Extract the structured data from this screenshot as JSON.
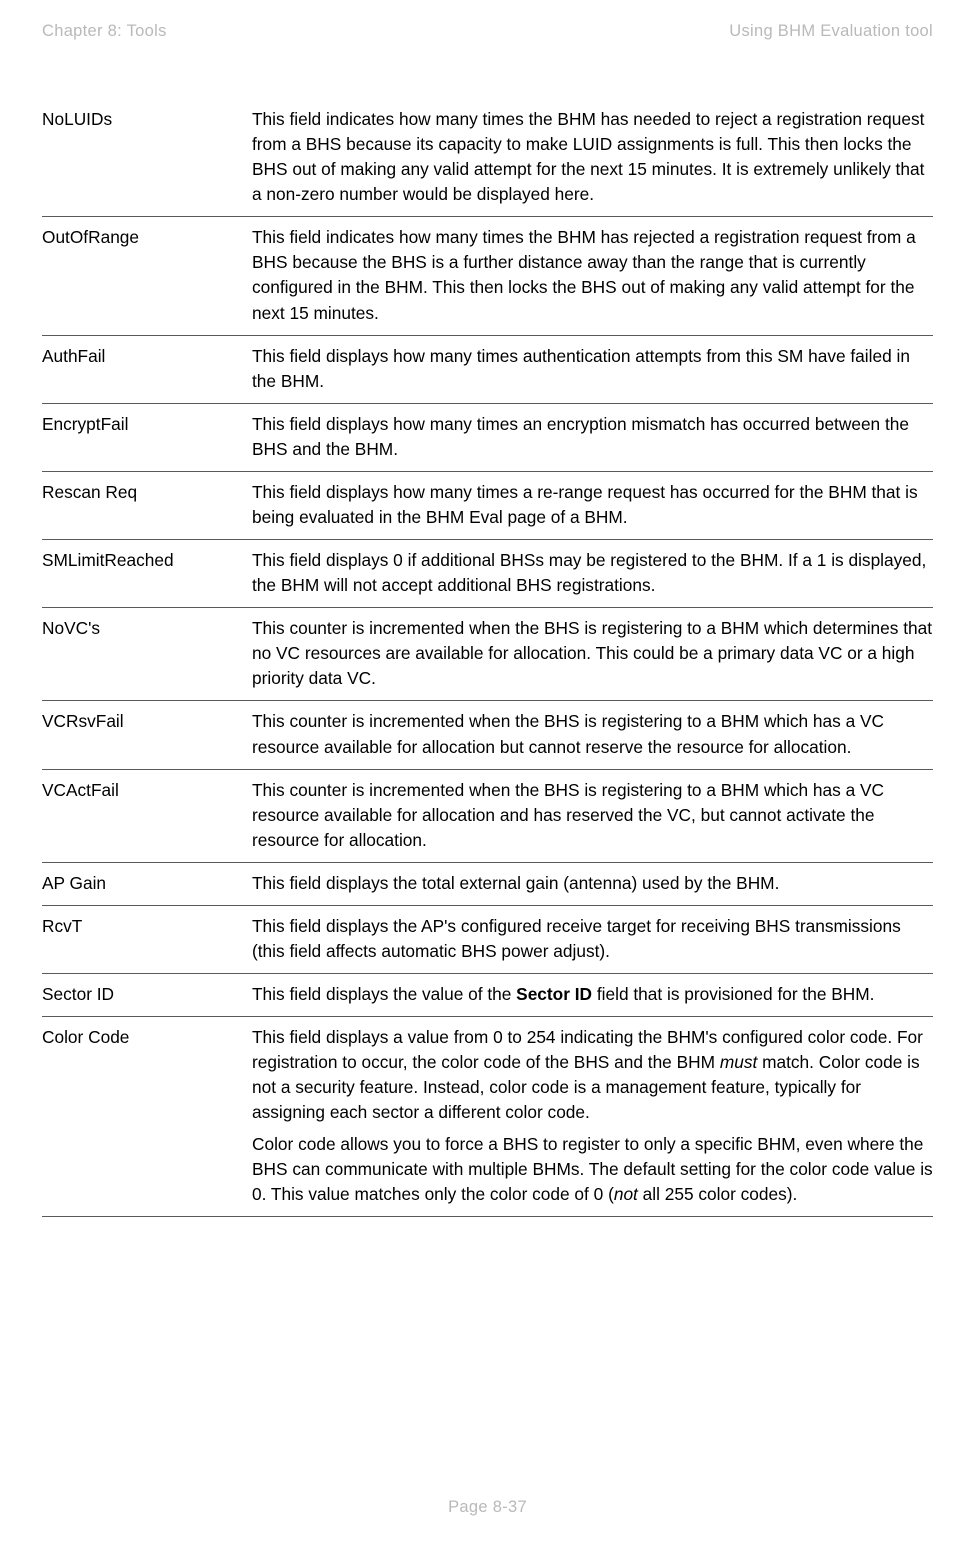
{
  "header": {
    "chapter_label": "Chapter 8:  Tools",
    "section_label": "Using BHM Evaluation tool"
  },
  "footer": {
    "page_label": "Page 8-37"
  },
  "table": {
    "rows": [
      {
        "term": "NoLUIDs",
        "desc_parts": [
          {
            "t": "This field indicates how many times the BHM has needed to reject a registration request from a BHS because its capacity to make LUID assignments is full. This then locks the BHS out of making any valid attempt for the next 15 minutes. It is extremely unlikely that a non-zero number would be displayed here."
          }
        ]
      },
      {
        "term": "OutOfRange",
        "desc_parts": [
          {
            "t": "This field indicates how many times the BHM has rejected a registration request from a BHS because the BHS is a further distance away than the range that is currently configured in the BHM. This then locks the BHS out of making any valid attempt for the next 15 minutes."
          }
        ]
      },
      {
        "term": "AuthFail",
        "desc_parts": [
          {
            "t": "This field displays how many times authentication attempts from this SM have failed in the BHM."
          }
        ]
      },
      {
        "term": "EncryptFail",
        "desc_parts": [
          {
            "t": "This field displays how many times an encryption mismatch has occurred between the BHS and the BHM."
          }
        ]
      },
      {
        "term": "Rescan Req",
        "desc_parts": [
          {
            "t": "This field displays how many times a re-range request has occurred for the BHM that is being evaluated in the BHM Eval page of a BHM."
          }
        ]
      },
      {
        "term": "SMLimitReached",
        "desc_parts": [
          {
            "t": "This field displays 0 if additional BHSs may be registered to the BHM. If a 1 is displayed, the BHM will not accept additional BHS registrations."
          }
        ]
      },
      {
        "term": "NoVC's",
        "desc_parts": [
          {
            "t": "This counter is incremented when the BHS is registering to a BHM which determines that no VC resources are available for allocation. This could be a primary data VC or a high priority data VC."
          }
        ]
      },
      {
        "term": "VCRsvFail",
        "desc_parts": [
          {
            "t": "This counter is incremented when the BHS is registering to a BHM which has a VC resource available for allocation but cannot reserve the resource for allocation."
          }
        ]
      },
      {
        "term": "VCActFail",
        "desc_parts": [
          {
            "t": "This counter is incremented when the BHS is registering to a BHM which has a VC resource available for allocation and has reserved the VC, but cannot activate the resource for allocation."
          }
        ]
      },
      {
        "term": "AP Gain",
        "desc_parts": [
          {
            "t": "This field displays the total external gain (antenna) used by the BHM."
          }
        ]
      },
      {
        "term": "RcvT",
        "desc_parts": [
          {
            "t": "This field displays the AP's configured receive target for receiving BHS transmissions (this field affects automatic BHS power adjust)."
          }
        ]
      },
      {
        "term": "Sector ID",
        "desc_parts": [
          {
            "t": "This field displays the value of the "
          },
          {
            "t": "Sector ID",
            "style": "bold"
          },
          {
            "t": " field that is provisioned for the BHM."
          }
        ]
      },
      {
        "term": "Color Code",
        "desc_paragraphs": [
          [
            {
              "t": "This field displays a value from 0 to 254 indicating the BHM's configured color code. For registration to occur, the color code of the BHS and the BHM "
            },
            {
              "t": "must",
              "style": "ital"
            },
            {
              "t": " match. Color code is not a security feature. Instead, color code is a management feature, typically for assigning each sector a different color code."
            }
          ],
          [
            {
              "t": "Color code allows you to force a BHS to register to only a specific BHM, even where the BHS can communicate with multiple BHMs. The default setting for the color code value is 0. This value matches only the color code of 0 ("
            },
            {
              "t": "not",
              "style": "ital"
            },
            {
              "t": " all 255 color codes)."
            }
          ]
        ]
      }
    ]
  }
}
